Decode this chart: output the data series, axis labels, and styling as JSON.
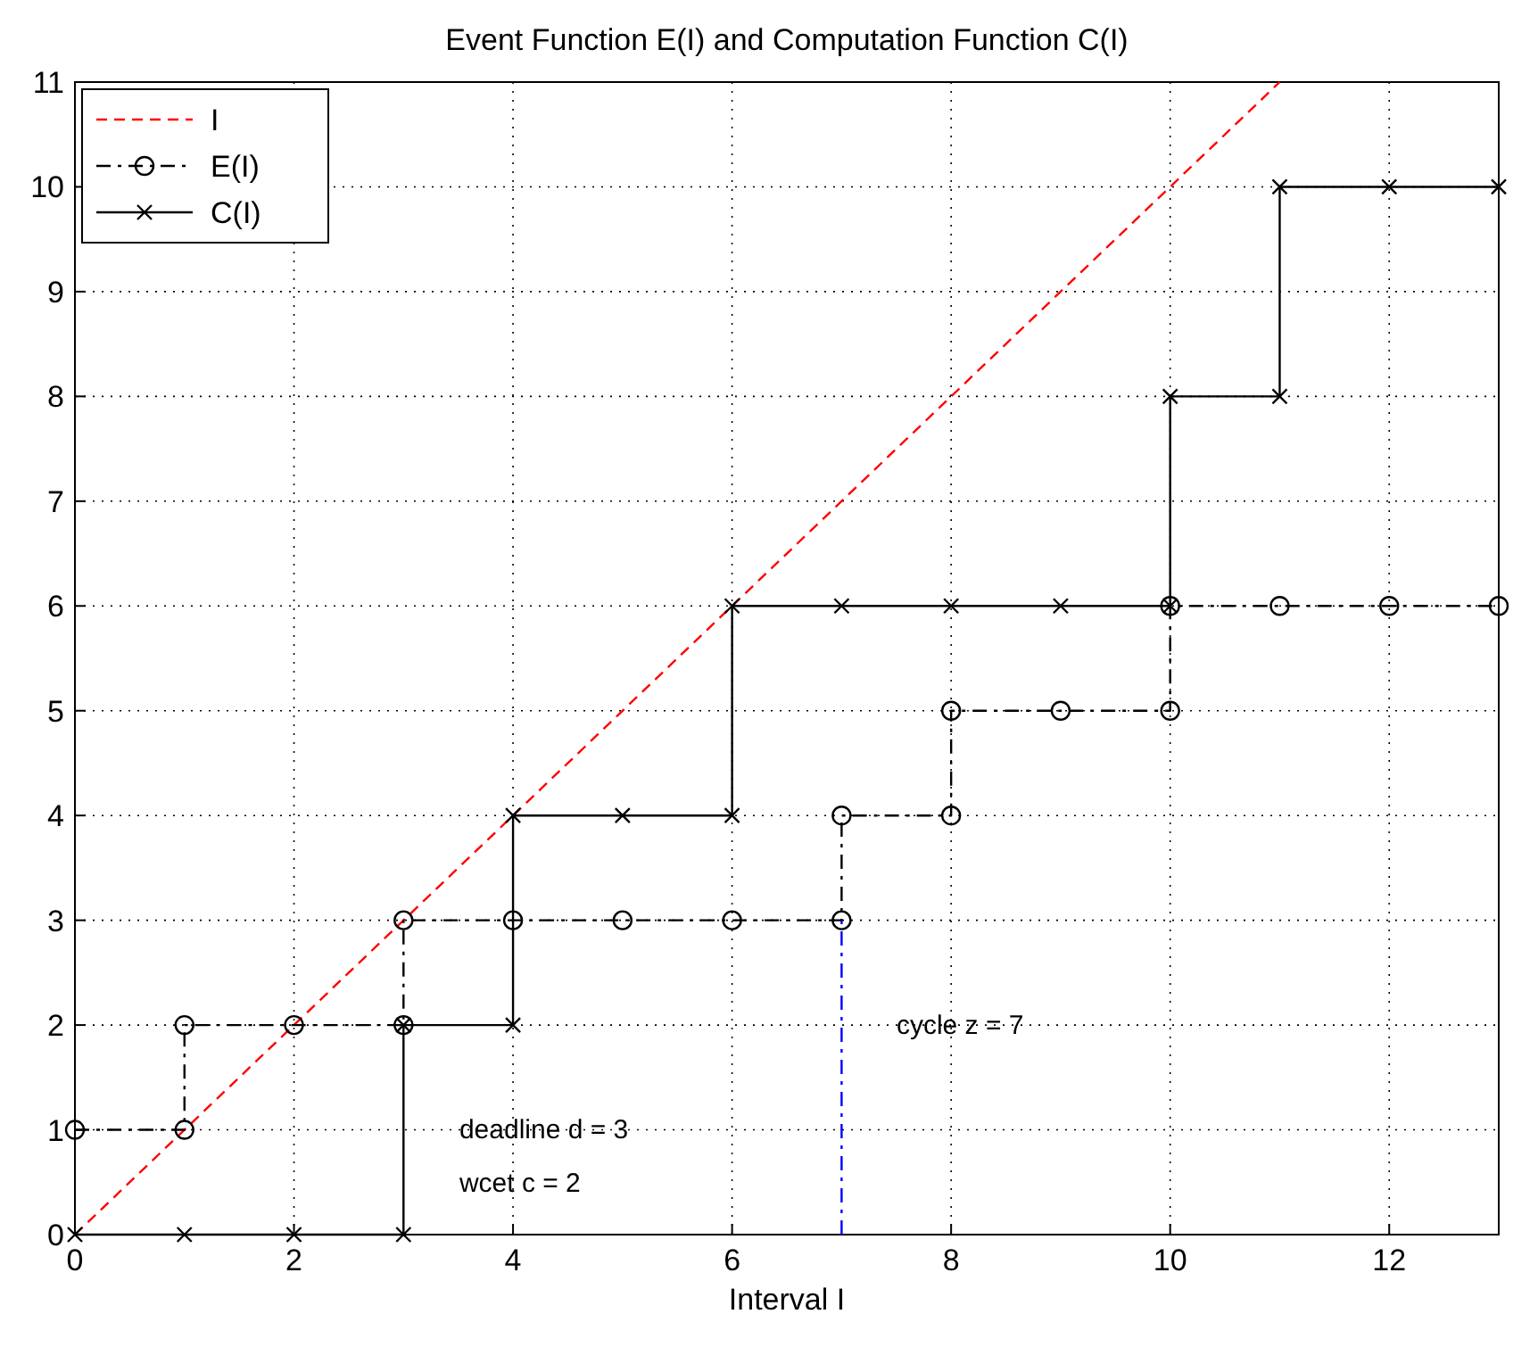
{
  "chart_data": {
    "type": "line",
    "title": "Event Function E(I) and Computation Function C(I)",
    "xlabel": "Interval I",
    "xlim": [
      0,
      13
    ],
    "xticks": [
      0,
      2,
      4,
      6,
      8,
      10,
      12
    ],
    "ylim": [
      0,
      11
    ],
    "yticks": [
      0,
      1,
      2,
      3,
      4,
      5,
      6,
      7,
      8,
      9,
      10,
      11
    ],
    "grid": true,
    "legend": "top left",
    "series": [
      {
        "name": "I",
        "color": "#ff0000",
        "x": [
          0,
          11
        ],
        "values": [
          0,
          11
        ],
        "marker": "none",
        "line_style": "dashed"
      },
      {
        "name": "E(I)",
        "color": "#000000",
        "x": [
          0,
          1,
          1,
          2,
          3,
          3,
          4,
          5,
          6,
          7,
          7,
          8,
          8,
          9,
          10,
          10,
          11,
          12,
          13
        ],
        "values": [
          1,
          1,
          2,
          2,
          2,
          3,
          3,
          3,
          3,
          3,
          4,
          4,
          5,
          5,
          5,
          6,
          6,
          6,
          6
        ],
        "marker": "circle",
        "line_style": "dashdot"
      },
      {
        "name": "C(I)",
        "color": "#000000",
        "x": [
          0,
          1,
          2,
          3,
          3,
          4,
          4,
          5,
          6,
          6,
          7,
          8,
          9,
          10,
          10,
          11,
          11,
          12,
          13
        ],
        "values": [
          0,
          0,
          0,
          0,
          2,
          2,
          4,
          4,
          4,
          6,
          6,
          6,
          6,
          6,
          8,
          8,
          10,
          10,
          10
        ],
        "marker": "cross",
        "line_style": "solid"
      },
      {
        "color": "#0000ff",
        "x": [
          7,
          7
        ],
        "values": [
          0,
          3
        ],
        "marker": "none",
        "line_style": "dashdot"
      }
    ],
    "annotations": [
      "deadline d = 3",
      "wcet c = 2",
      "cycle z = 7"
    ]
  }
}
